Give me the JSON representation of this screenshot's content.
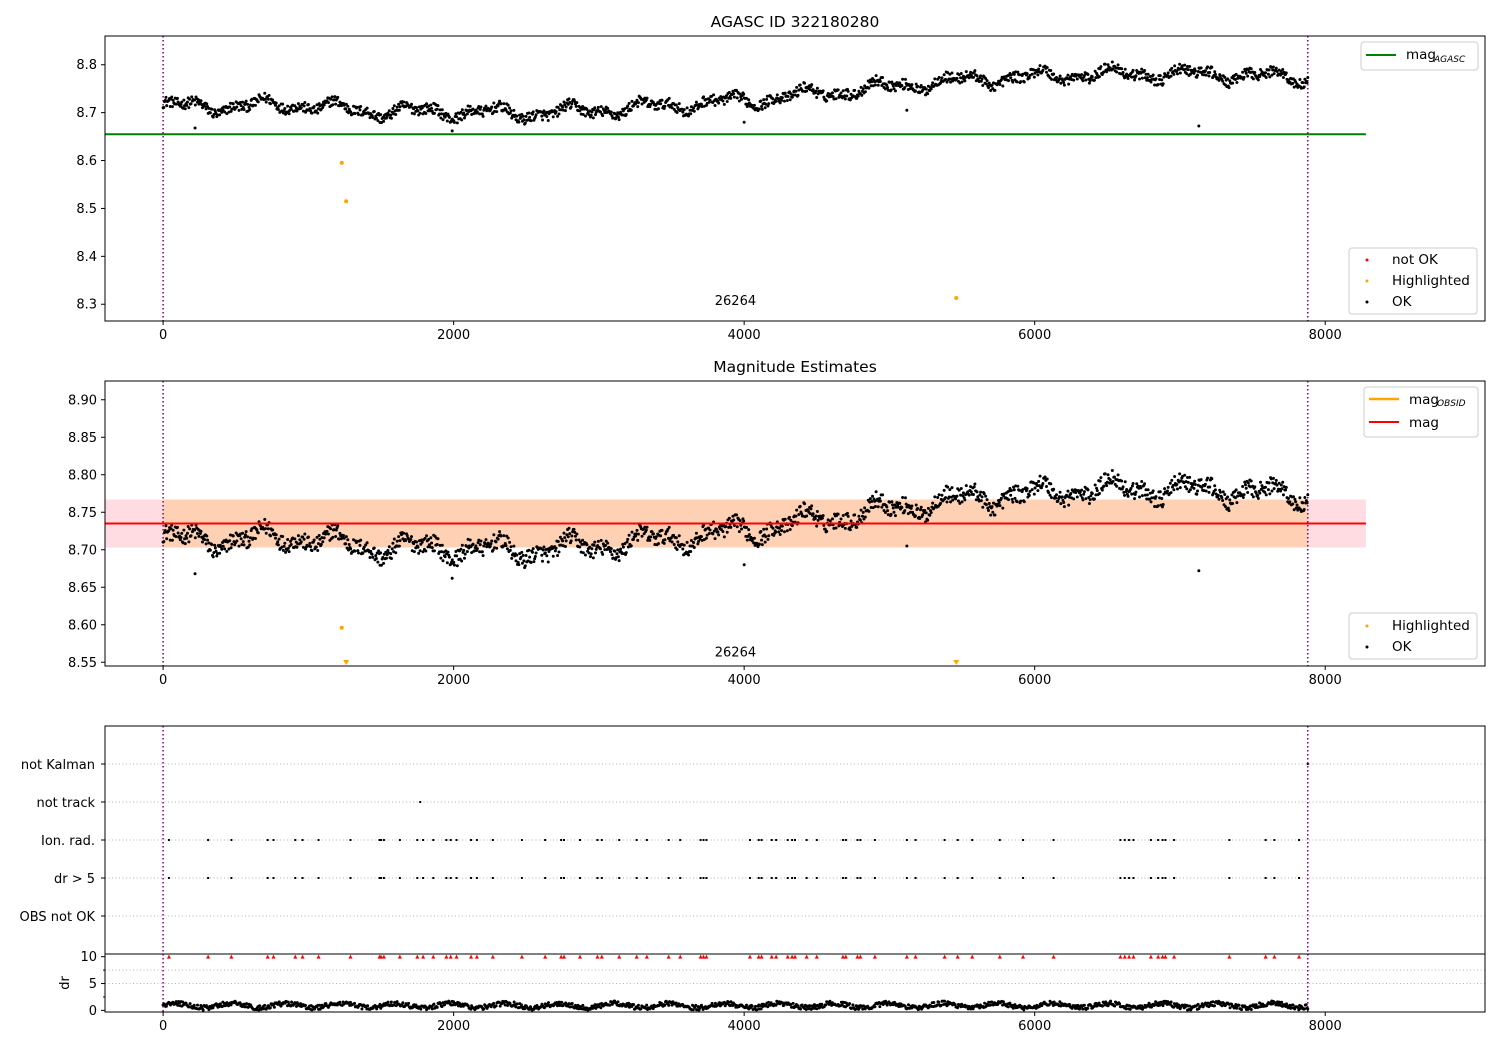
{
  "chart_data": [
    {
      "type": "scatter",
      "title": "AGASC ID 322180280",
      "xlabel": "",
      "ylabel": "",
      "xlim": [
        -400,
        9100
      ],
      "ylim": [
        8.265,
        8.86
      ],
      "xticks": [
        0,
        2000,
        4000,
        6000,
        8000
      ],
      "xtick_labels": [
        "0",
        "2000",
        "4000",
        "6000",
        "8000"
      ],
      "yticks": [
        8.3,
        8.4,
        8.5,
        8.6,
        8.7,
        8.8
      ],
      "ytick_labels": [
        "8.3",
        "8.4",
        "8.5",
        "8.6",
        "8.7",
        "8.8"
      ],
      "vlines": [
        0,
        7880
      ],
      "hline": {
        "y": 8.655,
        "x_end": 8280,
        "color": "#008000",
        "label_main": "mag",
        "label_sub": "AGASC"
      },
      "annotation": {
        "text": "26264",
        "x": 3940,
        "y": 8.28
      },
      "series": [
        {
          "name": "not OK",
          "color": "#ff0000",
          "x": [],
          "y": []
        },
        {
          "name": "Highlighted",
          "color": "#ffa500",
          "x": [
            1230,
            1260,
            5460
          ],
          "y": [
            8.595,
            8.515,
            8.313
          ]
        },
        {
          "name": "OK",
          "color": "#000000",
          "trend": {
            "x": [
              0,
              400,
              900,
              1400,
              2000,
              2500,
              3000,
              3500,
              4000,
              4500,
              5000,
              5500,
              6000,
              6500,
              7000,
              7500,
              7880
            ],
            "y": [
              8.715,
              8.712,
              8.718,
              8.703,
              8.702,
              8.698,
              8.705,
              8.715,
              8.725,
              8.74,
              8.755,
              8.768,
              8.775,
              8.782,
              8.78,
              8.778,
              8.77
            ]
          },
          "x_range": [
            0,
            7880
          ],
          "point_count": 1600,
          "outliers": {
            "x": [
              220,
              1990,
              4000,
              5120,
              7130
            ],
            "y": [
              8.668,
              8.662,
              8.68,
              8.705,
              8.672
            ]
          }
        }
      ],
      "legends": [
        {
          "position": "top-right",
          "entries": [
            {
              "name": "mag",
              "sub": "AGASC",
              "color": "#008000",
              "kind": "line"
            }
          ]
        },
        {
          "position": "bottom-right",
          "entries": [
            {
              "name": "not OK",
              "color": "#ff0000",
              "kind": "dot"
            },
            {
              "name": "Highlighted",
              "color": "#ffa500",
              "kind": "dot"
            },
            {
              "name": "OK",
              "color": "#000000",
              "kind": "dot"
            }
          ]
        }
      ]
    },
    {
      "type": "scatter",
      "title": "Magnitude Estimates",
      "xlabel": "",
      "ylabel": "",
      "xlim": [
        -400,
        9100
      ],
      "ylim": [
        8.545,
        8.925
      ],
      "xticks": [
        0,
        2000,
        4000,
        6000,
        8000
      ],
      "xtick_labels": [
        "0",
        "2000",
        "4000",
        "6000",
        "8000"
      ],
      "yticks": [
        8.55,
        8.6,
        8.65,
        8.7,
        8.75,
        8.8,
        8.85,
        8.9
      ],
      "ytick_labels": [
        "8.55",
        "8.60",
        "8.65",
        "8.70",
        "8.75",
        "8.80",
        "8.85",
        "8.90"
      ],
      "vlines": [
        0,
        7880
      ],
      "mag_line": {
        "y": 8.735,
        "x_end": 8280,
        "color": "#ff0000",
        "label": "mag"
      },
      "mag_band": {
        "y_low": 8.703,
        "y_high": 8.767,
        "x_end": 8280,
        "color": "#ffc0cb"
      },
      "obsid_band": {
        "y_low": 8.703,
        "y_high": 8.767,
        "x_end": 8280,
        "color": "#ffa500",
        "label_main": "mag",
        "label_sub": "OBSID"
      },
      "annotation": {
        "text": "26264",
        "x": 3940,
        "y": 8.555
      },
      "series": [
        {
          "name": "Highlighted",
          "color": "#ffa500",
          "x": [
            1230
          ],
          "y": [
            8.596
          ]
        },
        {
          "name": "Highlighted (off-scale, below axis)",
          "color": "#ffa500",
          "x": [
            1260,
            5460
          ],
          "y": [
            8.548,
            8.548
          ]
        },
        {
          "name": "OK",
          "color": "#000000",
          "trend": {
            "x": [
              0,
              400,
              900,
              1400,
              2000,
              2500,
              3000,
              3500,
              4000,
              4500,
              5000,
              5500,
              6000,
              6500,
              7000,
              7500,
              7880
            ],
            "y": [
              8.715,
              8.712,
              8.718,
              8.703,
              8.702,
              8.698,
              8.705,
              8.715,
              8.725,
              8.74,
              8.755,
              8.768,
              8.775,
              8.782,
              8.78,
              8.778,
              8.77
            ]
          },
          "x_range": [
            0,
            7880
          ],
          "point_count": 1600,
          "outliers": {
            "x": [
              220,
              1990,
              4000,
              5120,
              7130
            ],
            "y": [
              8.668,
              8.662,
              8.68,
              8.705,
              8.672
            ]
          }
        }
      ],
      "legends": [
        {
          "position": "top-right",
          "entries": [
            {
              "name": "mag",
              "sub": "OBSID",
              "color": "#ffa500",
              "kind": "line"
            },
            {
              "name": "mag",
              "sub": "",
              "color": "#ff0000",
              "kind": "line"
            }
          ]
        },
        {
          "position": "bottom-right",
          "entries": [
            {
              "name": "Highlighted",
              "color": "#ffa500",
              "kind": "dot"
            },
            {
              "name": "OK",
              "color": "#000000",
              "kind": "dot"
            }
          ]
        }
      ]
    },
    {
      "type": "scatter",
      "title": "",
      "xlabel": "",
      "ylabel": "",
      "xlim": [
        -400,
        9100
      ],
      "categories": [
        "not Kalman",
        "not track",
        "Ion. rad.",
        "dr > 5",
        "OBS not OK"
      ],
      "vlines": [
        0,
        7880
      ],
      "flags": {
        "not Kalman": [
          7880
        ],
        "not track": [
          1770
        ],
        "Ion. rad.": [
          40,
          310,
          470,
          720,
          760,
          910,
          960,
          1070,
          1290,
          1490,
          1500,
          1520,
          1630,
          1750,
          1790,
          1860,
          1950,
          1980,
          2020,
          2120,
          2160,
          2270,
          2470,
          2630,
          2740,
          2760,
          2870,
          2990,
          3020,
          3140,
          3260,
          3330,
          3480,
          3560,
          3700,
          3720,
          3740,
          4040,
          4100,
          4120,
          4190,
          4220,
          4300,
          4330,
          4350,
          4430,
          4500,
          4680,
          4700,
          4780,
          4800,
          4900,
          5120,
          5180,
          5380,
          5470,
          5570,
          5760,
          5920,
          6130,
          6590,
          6620,
          6650,
          6680,
          6800,
          6850,
          6880,
          6900,
          6960,
          7340,
          7590,
          7650,
          7820
        ],
        "dr > 5": [
          40,
          310,
          470,
          720,
          760,
          910,
          960,
          1070,
          1290,
          1490,
          1500,
          1520,
          1630,
          1750,
          1790,
          1860,
          1950,
          1980,
          2020,
          2120,
          2160,
          2270,
          2470,
          2630,
          2740,
          2760,
          2870,
          2990,
          3020,
          3140,
          3260,
          3330,
          3480,
          3560,
          3700,
          3720,
          3740,
          4040,
          4100,
          4120,
          4190,
          4220,
          4300,
          4330,
          4350,
          4430,
          4500,
          4680,
          4700,
          4780,
          4800,
          4900,
          5120,
          5180,
          5380,
          5470,
          5570,
          5760,
          5920,
          6130,
          6590,
          6620,
          6650,
          6680,
          6800,
          6850,
          6880,
          6900,
          6960,
          7340,
          7590,
          7650,
          7820
        ],
        "OBS not OK": []
      }
    },
    {
      "type": "scatter",
      "title": "",
      "xlabel": "",
      "ylabel": "dr",
      "xlim": [
        -400,
        9100
      ],
      "ylim": [
        -0.3,
        10.5
      ],
      "yticks": [
        0,
        5,
        10
      ],
      "ytick_labels": [
        "0",
        "5",
        "10"
      ],
      "xticks": [
        0,
        2000,
        4000,
        6000,
        8000
      ],
      "xtick_labels": [
        "0",
        "2000",
        "4000",
        "6000",
        "8000"
      ],
      "vlines": [
        0,
        7880
      ],
      "hlines": [
        5,
        7.5
      ],
      "series": [
        {
          "name": "dr",
          "color": "#000000",
          "baseline": 0.9,
          "x_range": [
            0,
            7880
          ],
          "point_count": 1400
        },
        {
          "name": "dr > 10 (capped)",
          "color": "#ff0000",
          "marker": "triangle",
          "y": 10,
          "x": [
            40,
            310,
            470,
            720,
            760,
            910,
            960,
            1070,
            1290,
            1490,
            1500,
            1520,
            1630,
            1750,
            1790,
            1860,
            1950,
            1980,
            2020,
            2120,
            2160,
            2270,
            2470,
            2630,
            2740,
            2760,
            2870,
            2990,
            3020,
            3140,
            3260,
            3330,
            3480,
            3560,
            3700,
            3720,
            3740,
            4040,
            4100,
            4120,
            4190,
            4220,
            4300,
            4330,
            4350,
            4430,
            4500,
            4680,
            4700,
            4780,
            4800,
            4900,
            5120,
            5180,
            5380,
            5470,
            5570,
            5760,
            5920,
            6130,
            6590,
            6620,
            6650,
            6680,
            6800,
            6850,
            6880,
            6900,
            6960,
            7340,
            7590,
            7650,
            7820
          ]
        }
      ]
    }
  ]
}
